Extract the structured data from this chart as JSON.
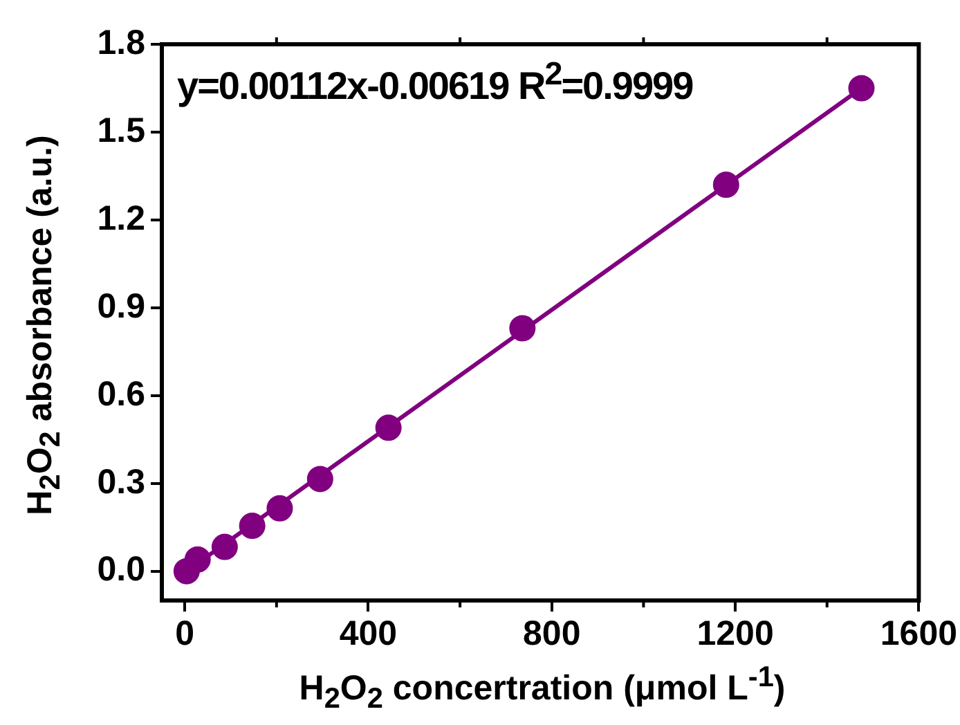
{
  "chart_data": {
    "type": "scatter",
    "xlabel": "H$_{2}$O$_{2}$ concertration (μmol L$^{-1}$)",
    "ylabel": "H$_{2}$O$_{2}$ absorbance (a.u.)",
    "annotations": [
      "y=0.00112x-0.00619 R$^{2}$=0.9999"
    ],
    "series": [
      {
        "color": "#800080",
        "x": [
          4,
          28,
          87,
          147,
          207,
          295,
          444,
          736,
          1180,
          1475
        ],
        "values": [
          0.0,
          0.04,
          0.083,
          0.155,
          0.215,
          0.315,
          0.49,
          0.83,
          1.32,
          1.65
        ]
      },
      {
        "type": "line",
        "color": "#800080",
        "marker": "none",
        "x": [
          4,
          1475
        ],
        "values": [
          0.0,
          1.65
        ]
      }
    ],
    "xlim": [
      -50,
      1600
    ],
    "xticks": [
      0,
      400,
      800,
      1200,
      1600
    ],
    "ylim": [
      -0.1,
      1.8
    ],
    "yticks": [
      {
        "value": 0,
        "label": "0.0"
      },
      {
        "value": 0.3,
        "label": "0.3"
      },
      {
        "value": 0.6,
        "label": "0.6"
      },
      {
        "value": 0.9,
        "label": "0.9"
      },
      {
        "value": 1.2,
        "label": "1.2"
      },
      {
        "value": 1.5,
        "label": "1.5"
      },
      {
        "value": 1.8,
        "label": "1.8"
      }
    ],
    "grid": false,
    "legend": false,
    "marker": "circle"
  }
}
